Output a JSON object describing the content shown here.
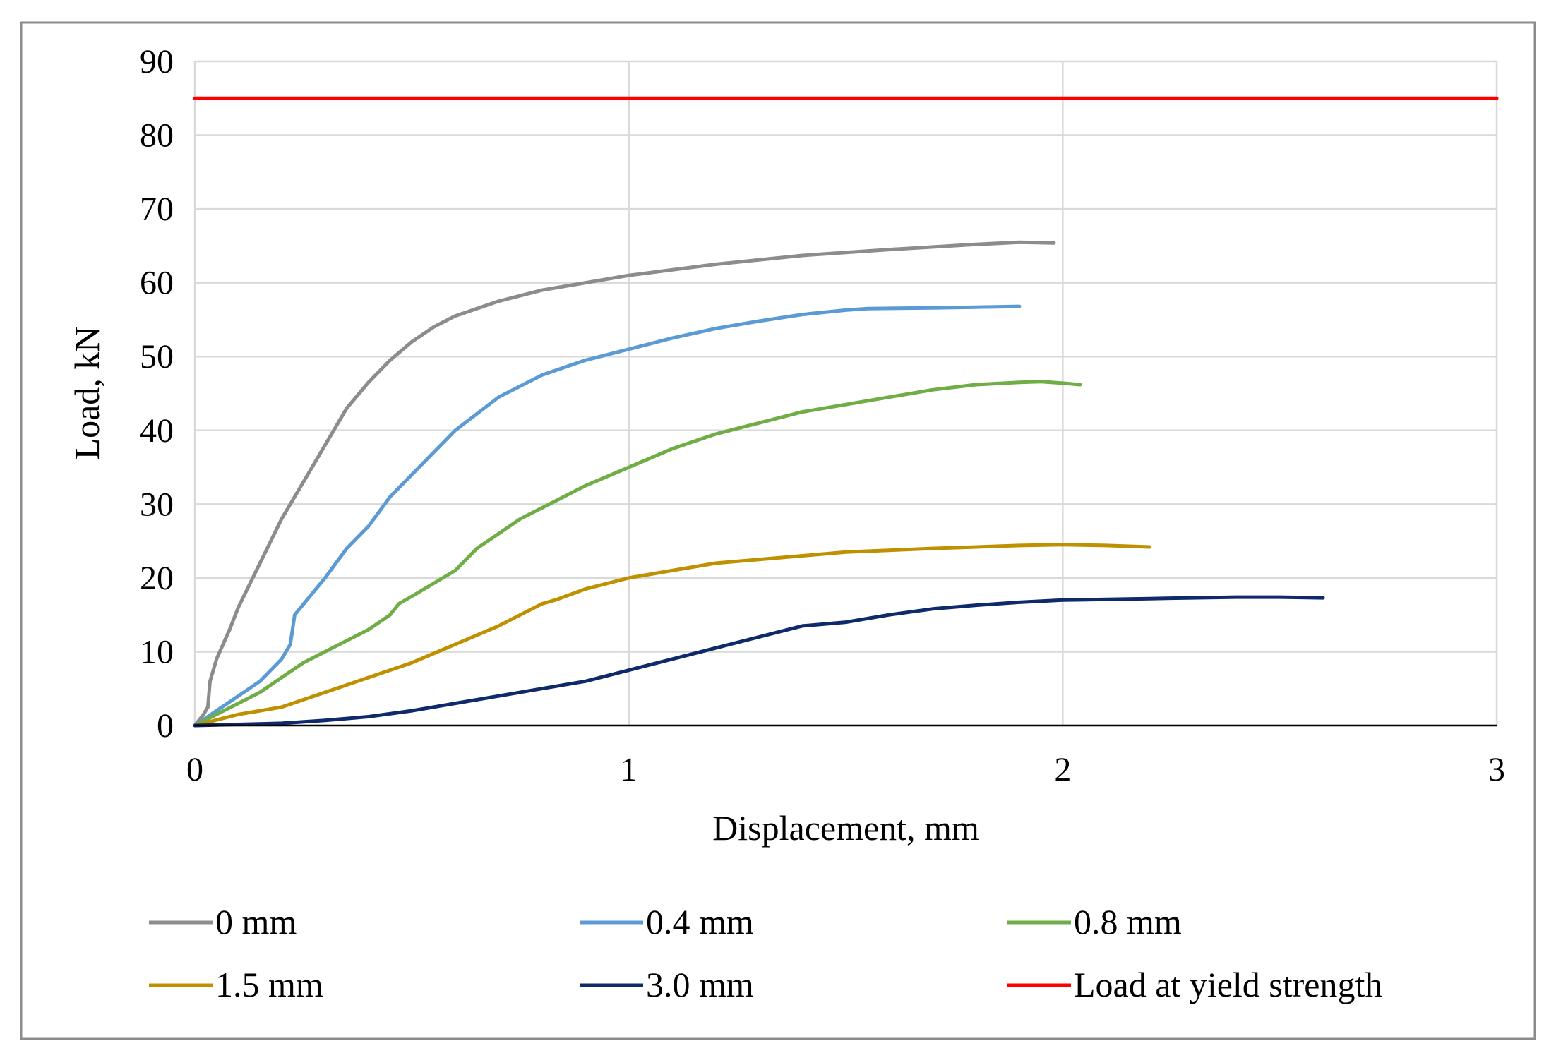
{
  "chart_data": {
    "type": "line",
    "title": "",
    "xlabel": "Displacement, mm",
    "ylabel": "Load, kN",
    "xlim": [
      0,
      3
    ],
    "ylim": [
      0,
      90
    ],
    "xticks": [
      0,
      1,
      2,
      3
    ],
    "yticks": [
      0,
      10,
      20,
      30,
      40,
      50,
      60,
      70,
      80,
      90
    ],
    "grid": true,
    "legend_position": "bottom",
    "series": [
      {
        "name": "0 mm",
        "color": "#8c8c8c",
        "x": [
          0,
          0.02,
          0.03,
          0.035,
          0.05,
          0.08,
          0.1,
          0.15,
          0.2,
          0.25,
          0.3,
          0.35,
          0.4,
          0.45,
          0.5,
          0.55,
          0.6,
          0.7,
          0.8,
          0.9,
          1.0,
          1.2,
          1.4,
          1.6,
          1.8,
          1.9,
          1.98
        ],
        "values": [
          0,
          1.5,
          2.5,
          6,
          9,
          13,
          16,
          22,
          28,
          33,
          38,
          43,
          46.5,
          49.5,
          52,
          54,
          55.5,
          57.5,
          59,
          60,
          61,
          62.5,
          63.7,
          64.5,
          65.2,
          65.5,
          65.4
        ]
      },
      {
        "name": "0.4 mm",
        "color": "#5b9bd5",
        "x": [
          0,
          0.05,
          0.1,
          0.15,
          0.2,
          0.22,
          0.23,
          0.3,
          0.35,
          0.4,
          0.45,
          0.5,
          0.55,
          0.6,
          0.7,
          0.8,
          0.9,
          1.0,
          1.1,
          1.2,
          1.3,
          1.4,
          1.5,
          1.55,
          1.7,
          1.8,
          1.9
        ],
        "values": [
          0,
          2,
          4,
          6,
          9,
          11,
          15,
          20,
          24,
          27,
          31,
          34,
          37,
          40,
          44.5,
          47.5,
          49.5,
          51,
          52.5,
          53.8,
          54.8,
          55.7,
          56.3,
          56.5,
          56.6,
          56.7,
          56.8
        ]
      },
      {
        "name": "0.8 mm",
        "color": "#70ad47",
        "x": [
          0,
          0.05,
          0.1,
          0.15,
          0.2,
          0.25,
          0.3,
          0.35,
          0.4,
          0.45,
          0.47,
          0.5,
          0.6,
          0.65,
          0.7,
          0.75,
          0.8,
          0.9,
          1.0,
          1.1,
          1.2,
          1.3,
          1.4,
          1.5,
          1.6,
          1.7,
          1.8,
          1.9,
          1.95,
          2.0,
          2.04
        ],
        "values": [
          0,
          1.5,
          3,
          4.5,
          6.5,
          8.5,
          10,
          11.5,
          13,
          15,
          16.5,
          17.5,
          21,
          24,
          26,
          28,
          29.5,
          32.5,
          35,
          37.5,
          39.5,
          41,
          42.5,
          43.5,
          44.5,
          45.5,
          46.2,
          46.5,
          46.6,
          46.4,
          46.2
        ]
      },
      {
        "name": "1.5 mm",
        "color": "#bf9000",
        "x": [
          0,
          0.1,
          0.15,
          0.2,
          0.3,
          0.4,
          0.5,
          0.6,
          0.7,
          0.75,
          0.8,
          0.83,
          0.9,
          1.0,
          1.1,
          1.2,
          1.3,
          1.5,
          1.7,
          1.9,
          2.0,
          2.1,
          2.2
        ],
        "values": [
          0,
          1.5,
          2,
          2.5,
          4.5,
          6.5,
          8.5,
          11,
          13.5,
          15,
          16.5,
          17,
          18.5,
          20,
          21,
          22,
          22.5,
          23.5,
          24,
          24.4,
          24.5,
          24.4,
          24.2
        ]
      },
      {
        "name": "3.0 mm",
        "color": "#0f2a6b",
        "x": [
          0,
          0.2,
          0.3,
          0.4,
          0.5,
          0.6,
          0.7,
          0.8,
          0.9,
          1.0,
          1.1,
          1.2,
          1.3,
          1.4,
          1.5,
          1.6,
          1.7,
          1.8,
          1.9,
          2.0,
          2.2,
          2.4,
          2.5,
          2.6
        ],
        "values": [
          0,
          0.3,
          0.7,
          1.2,
          2,
          3,
          4,
          5,
          6,
          7.5,
          9,
          10.5,
          12,
          13.5,
          14,
          15,
          15.8,
          16.3,
          16.7,
          17,
          17.2,
          17.4,
          17.4,
          17.3
        ]
      },
      {
        "name": "Load at yield strength",
        "color": "#ff0000",
        "x": [
          0,
          3
        ],
        "values": [
          85,
          85
        ]
      }
    ]
  }
}
